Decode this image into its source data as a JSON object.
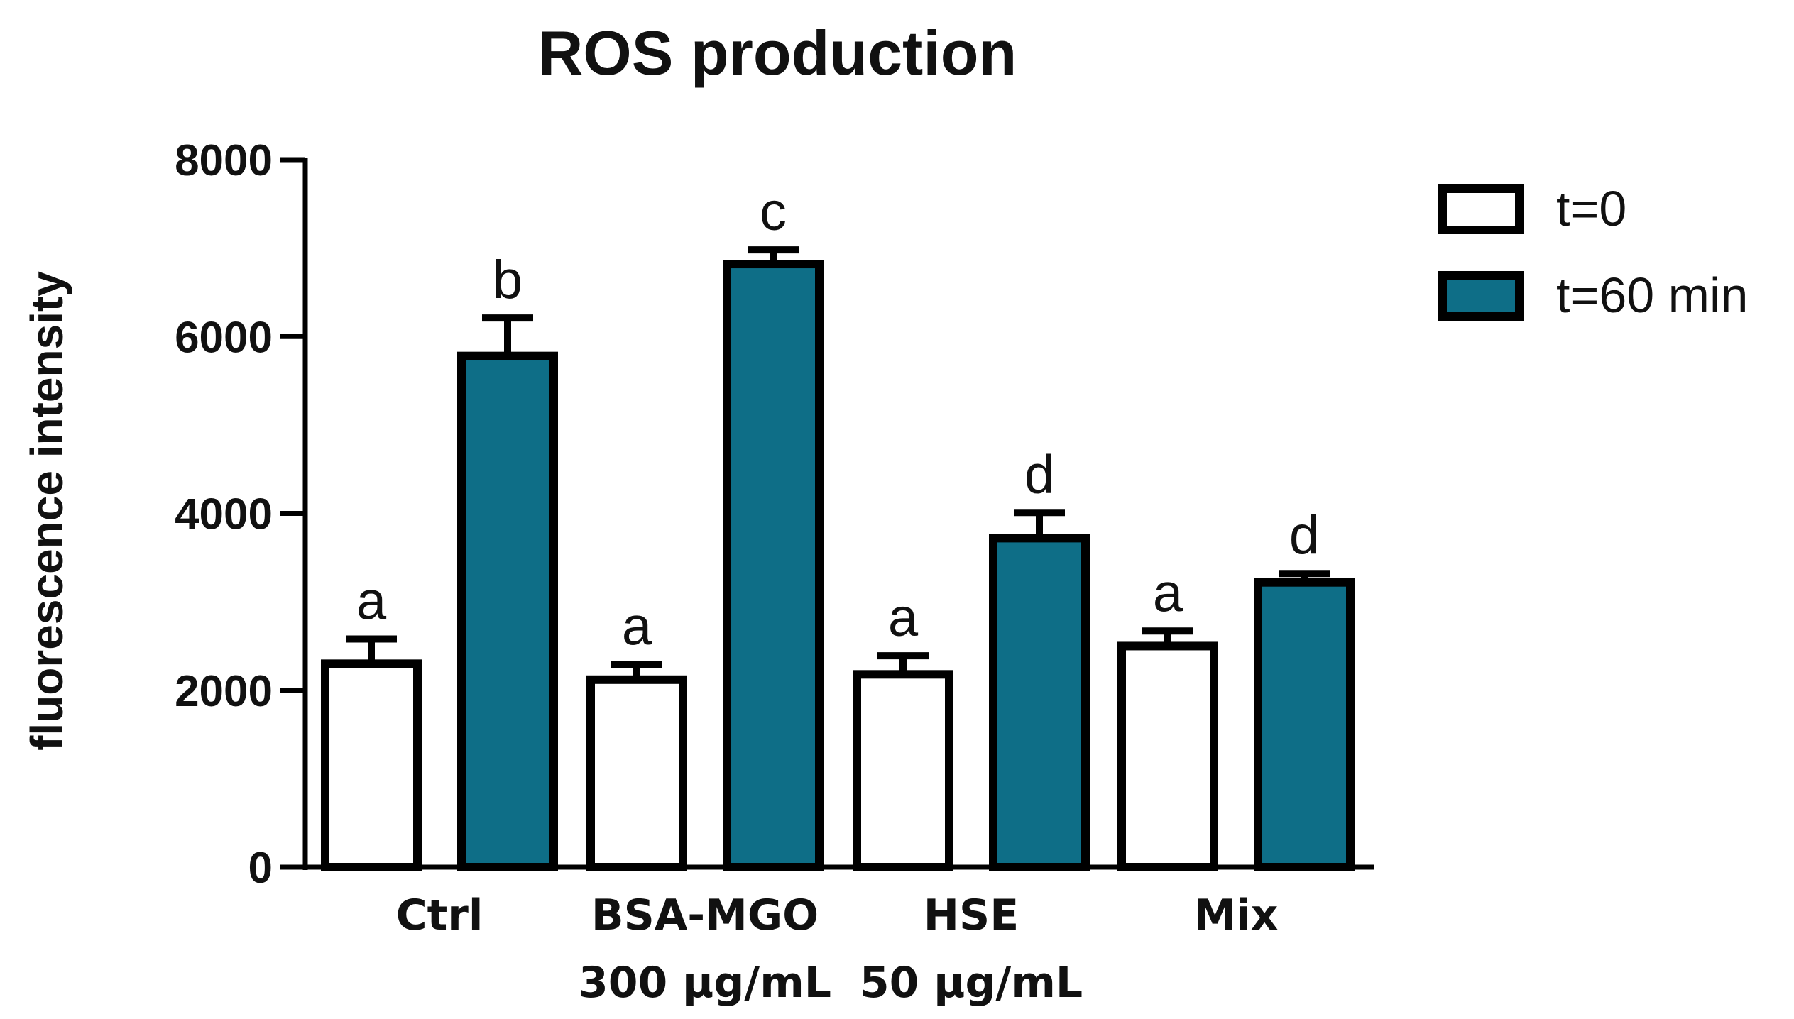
{
  "chart_data": {
    "type": "bar",
    "title": "ROS production",
    "xlabel": "",
    "ylabel": "fluorescence intensity",
    "ylim": [
      0,
      8000
    ],
    "yticks": [
      0,
      2000,
      4000,
      6000,
      8000
    ],
    "ytick_labels": [
      "0",
      "2000",
      "4000",
      "6000",
      "8000"
    ],
    "categories": [
      {
        "lines": [
          "Ctrl"
        ]
      },
      {
        "lines": [
          "BSA-MGO",
          "300 μg/mL"
        ]
      },
      {
        "lines": [
          "HSE",
          "50 μg/mL"
        ]
      },
      {
        "lines": [
          "Mix"
        ]
      }
    ],
    "series": [
      {
        "name": "t=0",
        "color": "#ffffff",
        "values": [
          2300,
          2120,
          2180,
          2500
        ],
        "errors": [
          280,
          170,
          210,
          170
        ],
        "labels": [
          "a",
          "a",
          "a",
          "a"
        ]
      },
      {
        "name": "t=60 min",
        "color": "#0e6e87",
        "values": [
          5780,
          6820,
          3720,
          3220
        ],
        "errors": [
          430,
          160,
          290,
          100
        ],
        "labels": [
          "b",
          "c",
          "d",
          "d"
        ]
      }
    ],
    "legend_position": "top-right",
    "grid": false,
    "edge_color": "#000000"
  }
}
